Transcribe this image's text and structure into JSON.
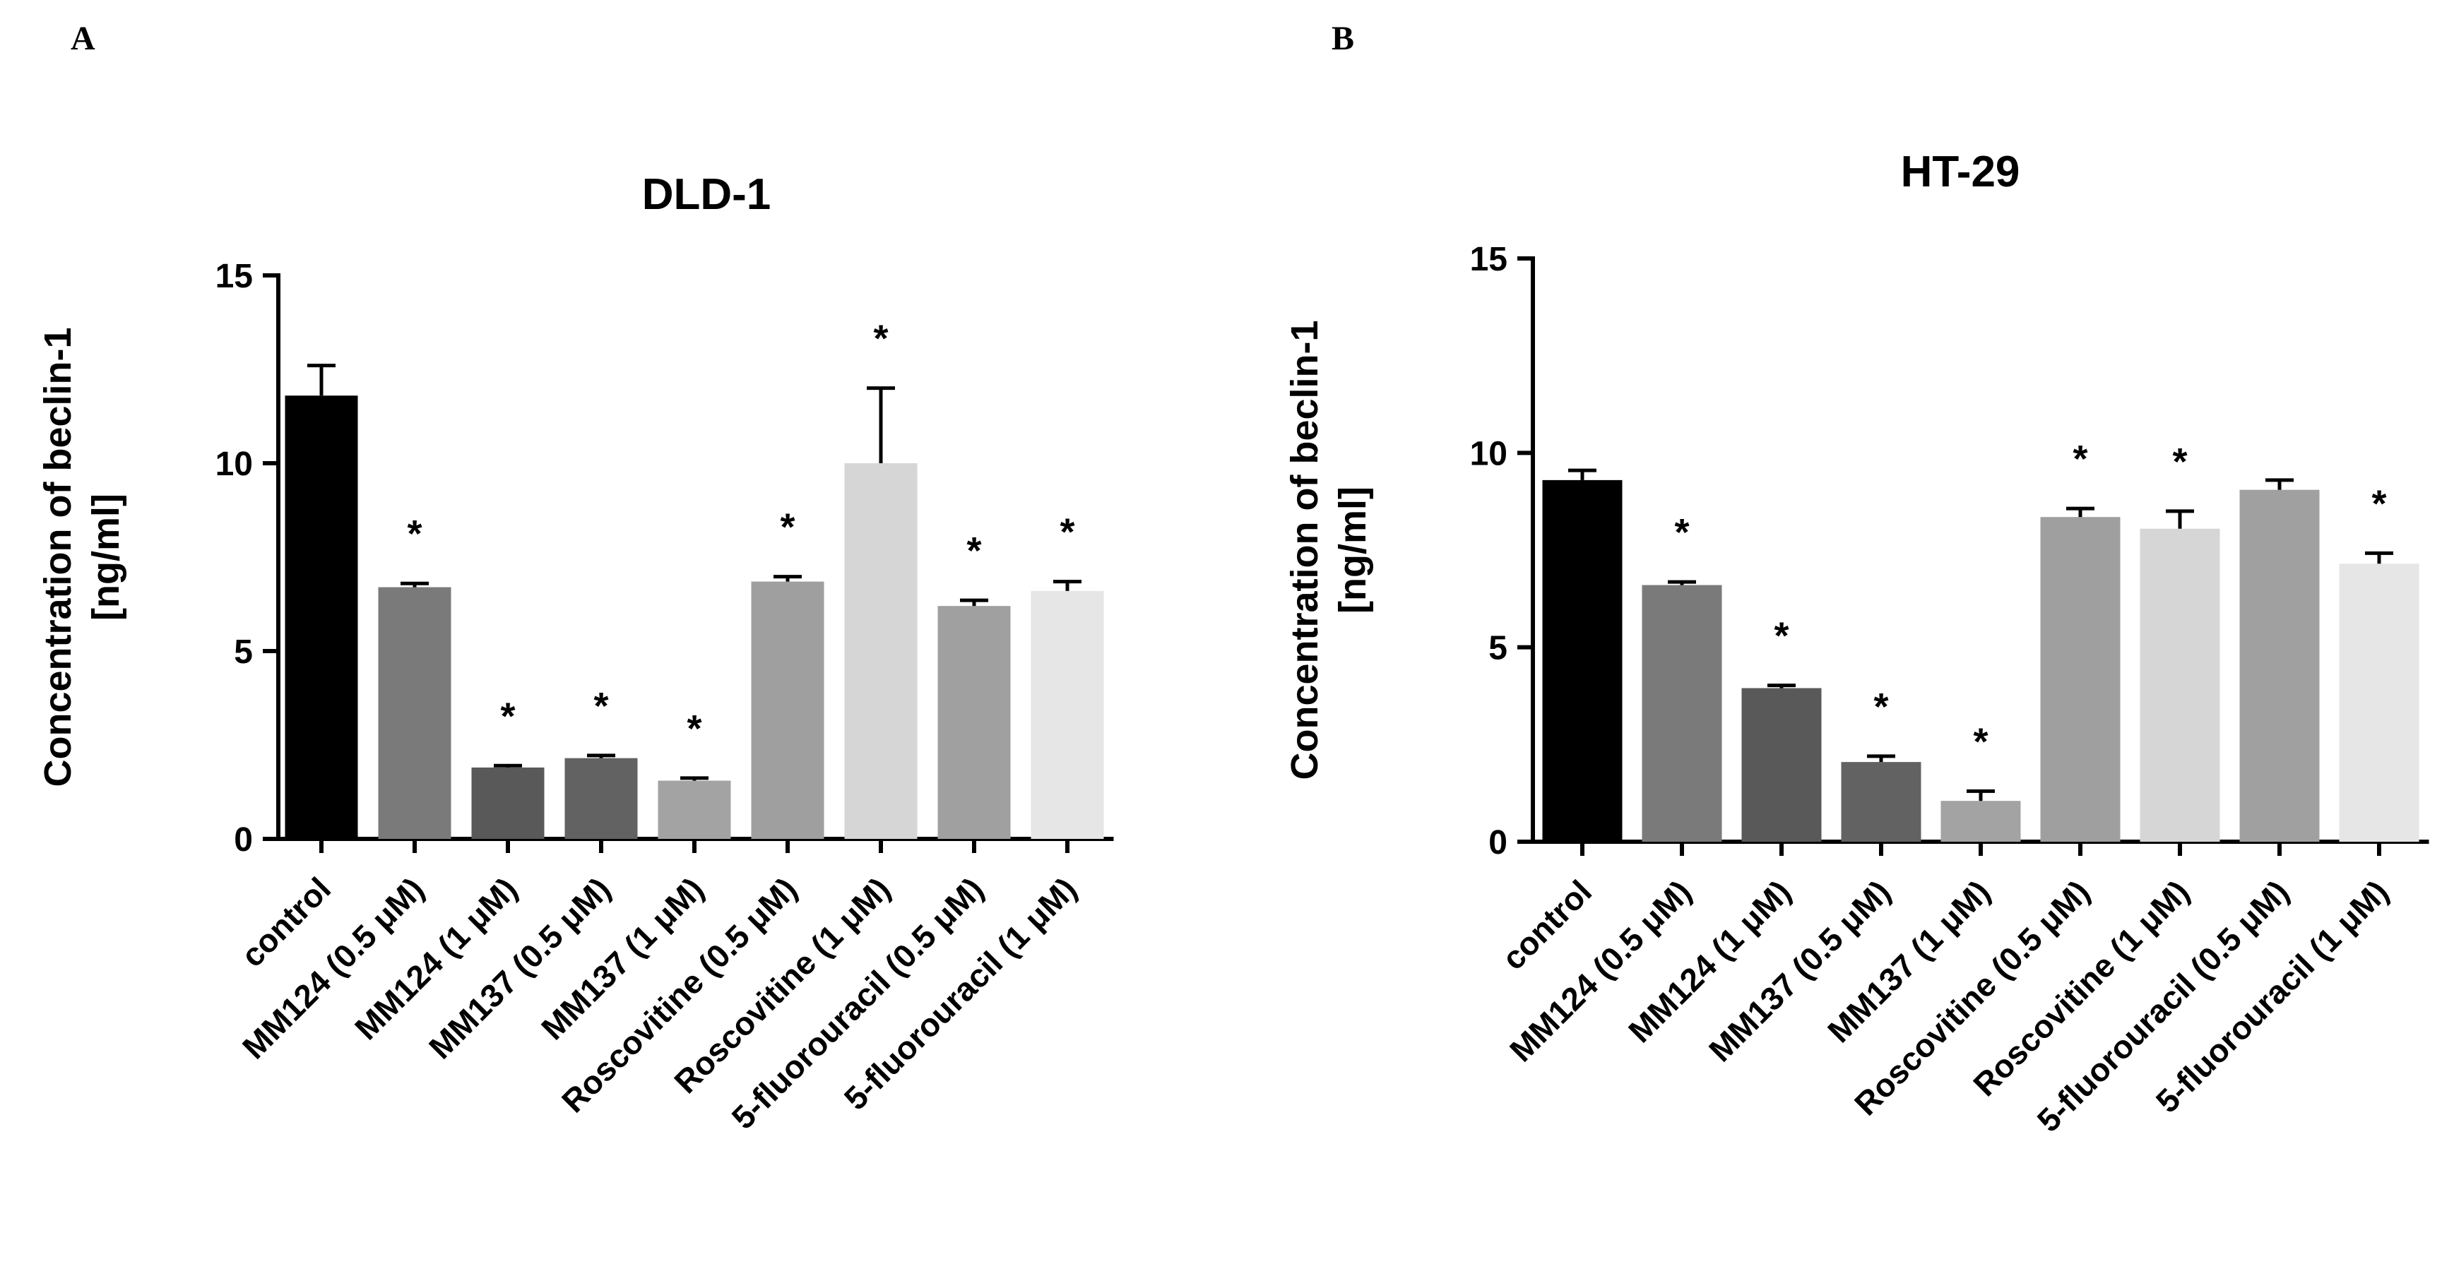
{
  "chart_data": [
    {
      "type": "bar",
      "panel": "A",
      "title": "DLD-1",
      "ylabel": "Concentration of beclin-1",
      "ylabel_unit": "[ng/ml]",
      "xlabel": "",
      "ylim": [
        0,
        15
      ],
      "yticks": [
        "0",
        "5",
        "10",
        "15"
      ],
      "categories": [
        "control",
        "MM124 (0.5 μM)",
        "MM124 (1 μM)",
        "MM137 (0.5 μM)",
        "MM137 (1 μM)",
        "Roscovitine (0.5 μM)",
        "Roscovitine (1 μM)",
        "5-fluorouracil  (0.5 μM)",
        "5-fluorouracil  (1 μM)"
      ],
      "values": [
        11.8,
        6.7,
        1.9,
        2.15,
        1.55,
        6.85,
        10.0,
        6.2,
        6.6
      ],
      "errors": [
        0.8,
        0.1,
        0.05,
        0.07,
        0.07,
        0.13,
        2.0,
        0.15,
        0.25
      ],
      "significance": [
        "",
        "*",
        "*",
        "*",
        "*",
        "*",
        "*",
        "*",
        "*"
      ],
      "colors": [
        "#000000",
        "#7a7a7a",
        "#595959",
        "#626262",
        "#a3a3a3",
        "#9f9f9f",
        "#d6d6d6",
        "#a0a0a0",
        "#e6e6e6"
      ]
    },
    {
      "type": "bar",
      "panel": "B",
      "title": "HT-29",
      "ylabel": "Concentration of beclin-1",
      "ylabel_unit": "[ng/ml]",
      "xlabel": "",
      "ylim": [
        0,
        15
      ],
      "yticks": [
        "0",
        "5",
        "10",
        "15"
      ],
      "categories": [
        "control",
        "MM124 (0.5 μM)",
        "MM124 (1 μM)",
        "MM137 (0.5 μM)",
        "MM137 (1 μM)",
        "Roscovitine (0.5 μM)",
        "Roscovitine (1 μM)",
        "5-fluorouracil  (0.5 μM)",
        "5-fluorouracil  (1 μM)"
      ],
      "values": [
        9.3,
        6.6,
        3.95,
        2.05,
        1.05,
        8.35,
        8.05,
        9.05,
        7.15
      ],
      "errors": [
        0.25,
        0.08,
        0.07,
        0.15,
        0.25,
        0.22,
        0.45,
        0.25,
        0.27
      ],
      "significance": [
        "",
        "*",
        "*",
        "*",
        "*",
        "*",
        "*",
        "",
        "*"
      ],
      "colors": [
        "#000000",
        "#7a7a7a",
        "#595959",
        "#626262",
        "#a3a3a3",
        "#9f9f9f",
        "#d6d6d6",
        "#a0a0a0",
        "#e6e6e6"
      ]
    }
  ]
}
